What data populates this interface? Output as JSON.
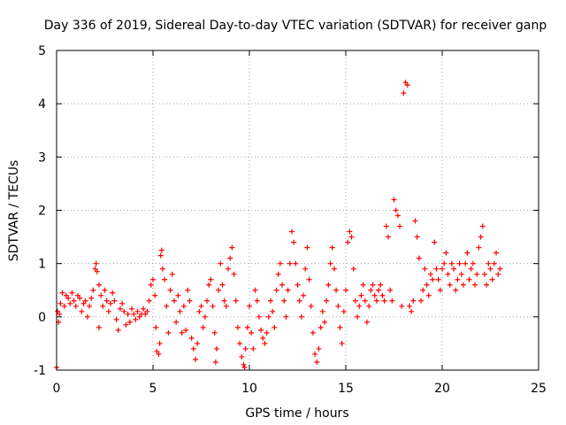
{
  "chart_data": {
    "type": "scatter",
    "title": "Day 336 of 2019, Sidereal Day-to-day VTEC variation (SDTVAR) for receiver ganp",
    "xlabel": "GPS time / hours",
    "ylabel": "SDTVAR / TECUs",
    "xlim": [
      0,
      25
    ],
    "ylim": [
      -1,
      5
    ],
    "x_ticks": [
      "0",
      "5",
      "10",
      "15",
      "20",
      "25"
    ],
    "y_ticks": [
      "-1",
      "0",
      "1",
      "2",
      "3",
      "4",
      "5"
    ],
    "grid": true,
    "marker": "+",
    "color": "#ff0000",
    "series": [
      {
        "name": "SDTVAR",
        "points": [
          [
            0.0,
            -0.95
          ],
          [
            0.05,
            0.1
          ],
          [
            0.1,
            -0.1
          ],
          [
            0.15,
            0.05
          ],
          [
            0.2,
            0.25
          ],
          [
            0.3,
            0.45
          ],
          [
            0.4,
            0.2
          ],
          [
            0.5,
            0.4
          ],
          [
            0.6,
            0.35
          ],
          [
            0.7,
            0.25
          ],
          [
            0.8,
            0.45
          ],
          [
            0.9,
            0.3
          ],
          [
            1.0,
            0.2
          ],
          [
            1.1,
            0.4
          ],
          [
            1.2,
            0.35
          ],
          [
            1.3,
            0.1
          ],
          [
            1.4,
            0.25
          ],
          [
            1.5,
            0.3
          ],
          [
            1.6,
            0.0
          ],
          [
            1.7,
            0.2
          ],
          [
            1.8,
            0.35
          ],
          [
            1.9,
            0.5
          ],
          [
            2.0,
            0.9
          ],
          [
            2.05,
            1.0
          ],
          [
            2.1,
            0.85
          ],
          [
            2.2,
            0.6
          ],
          [
            2.3,
            0.4
          ],
          [
            2.2,
            -0.2
          ],
          [
            2.4,
            0.2
          ],
          [
            2.5,
            0.5
          ],
          [
            2.6,
            0.3
          ],
          [
            2.7,
            0.1
          ],
          [
            2.8,
            0.25
          ],
          [
            2.9,
            0.45
          ],
          [
            3.0,
            0.3
          ],
          [
            3.1,
            -0.05
          ],
          [
            3.2,
            -0.25
          ],
          [
            3.3,
            0.15
          ],
          [
            3.4,
            0.25
          ],
          [
            3.5,
            0.1
          ],
          [
            3.6,
            -0.15
          ],
          [
            3.7,
            0.05
          ],
          [
            3.8,
            -0.1
          ],
          [
            3.9,
            0.15
          ],
          [
            4.0,
            0.05
          ],
          [
            4.1,
            -0.05
          ],
          [
            4.2,
            0.1
          ],
          [
            4.3,
            0.0
          ],
          [
            4.4,
            0.05
          ],
          [
            4.5,
            0.15
          ],
          [
            4.6,
            0.05
          ],
          [
            4.7,
            0.1
          ],
          [
            4.8,
            0.3
          ],
          [
            4.9,
            0.6
          ],
          [
            5.0,
            0.7
          ],
          [
            5.1,
            0.4
          ],
          [
            5.15,
            -0.2
          ],
          [
            5.2,
            -0.65
          ],
          [
            5.3,
            -0.7
          ],
          [
            5.35,
            -0.5
          ],
          [
            5.4,
            1.15
          ],
          [
            5.45,
            1.25
          ],
          [
            5.5,
            0.9
          ],
          [
            5.6,
            0.7
          ],
          [
            5.7,
            0.2
          ],
          [
            5.8,
            -0.3
          ],
          [
            5.9,
            0.5
          ],
          [
            6.0,
            0.8
          ],
          [
            6.1,
            0.3
          ],
          [
            6.2,
            -0.1
          ],
          [
            6.3,
            0.4
          ],
          [
            6.4,
            0.1
          ],
          [
            6.5,
            -0.3
          ],
          [
            6.6,
            0.2
          ],
          [
            6.7,
            -0.25
          ],
          [
            6.8,
            0.5
          ],
          [
            6.9,
            0.3
          ],
          [
            7.0,
            -0.4
          ],
          [
            7.1,
            -0.6
          ],
          [
            7.2,
            -0.8
          ],
          [
            7.3,
            -0.5
          ],
          [
            7.4,
            0.1
          ],
          [
            7.5,
            0.2
          ],
          [
            7.6,
            -0.2
          ],
          [
            7.7,
            0.0
          ],
          [
            7.8,
            0.3
          ],
          [
            7.9,
            0.6
          ],
          [
            8.0,
            0.7
          ],
          [
            8.1,
            0.2
          ],
          [
            8.2,
            -0.3
          ],
          [
            8.25,
            -0.85
          ],
          [
            8.3,
            -0.6
          ],
          [
            8.4,
            0.5
          ],
          [
            8.5,
            1.0
          ],
          [
            8.6,
            0.6
          ],
          [
            8.7,
            0.3
          ],
          [
            8.8,
            0.2
          ],
          [
            8.9,
            0.9
          ],
          [
            9.0,
            1.1
          ],
          [
            9.1,
            1.3
          ],
          [
            9.2,
            0.8
          ],
          [
            9.3,
            0.3
          ],
          [
            9.4,
            -0.2
          ],
          [
            9.5,
            -0.5
          ],
          [
            9.6,
            -0.75
          ],
          [
            9.7,
            -0.9
          ],
          [
            9.75,
            -0.95
          ],
          [
            9.8,
            -0.6
          ],
          [
            9.9,
            -0.2
          ],
          [
            10.0,
            0.2
          ],
          [
            10.1,
            -0.3
          ],
          [
            10.2,
            -0.6
          ],
          [
            10.3,
            0.5
          ],
          [
            10.4,
            0.3
          ],
          [
            10.5,
            0.0
          ],
          [
            10.6,
            -0.25
          ],
          [
            10.7,
            -0.4
          ],
          [
            10.8,
            -0.5
          ],
          [
            10.9,
            -0.3
          ],
          [
            11.0,
            0.0
          ],
          [
            11.1,
            0.3
          ],
          [
            11.2,
            0.1
          ],
          [
            11.3,
            -0.2
          ],
          [
            11.4,
            0.5
          ],
          [
            11.5,
            0.8
          ],
          [
            11.6,
            1.0
          ],
          [
            11.7,
            0.6
          ],
          [
            11.8,
            0.3
          ],
          [
            11.9,
            0.0
          ],
          [
            12.0,
            0.5
          ],
          [
            12.1,
            1.0
          ],
          [
            12.2,
            1.6
          ],
          [
            12.3,
            1.4
          ],
          [
            12.4,
            1.0
          ],
          [
            12.5,
            0.6
          ],
          [
            12.6,
            0.3
          ],
          [
            12.7,
            0.0
          ],
          [
            12.8,
            0.4
          ],
          [
            12.9,
            0.9
          ],
          [
            13.0,
            1.3
          ],
          [
            13.1,
            0.7
          ],
          [
            13.2,
            0.2
          ],
          [
            13.3,
            -0.3
          ],
          [
            13.4,
            -0.7
          ],
          [
            13.5,
            -0.85
          ],
          [
            13.6,
            -0.6
          ],
          [
            13.7,
            -0.2
          ],
          [
            13.8,
            0.1
          ],
          [
            13.9,
            -0.1
          ],
          [
            14.0,
            0.3
          ],
          [
            14.1,
            0.6
          ],
          [
            14.2,
            1.0
          ],
          [
            14.3,
            1.3
          ],
          [
            14.4,
            0.9
          ],
          [
            14.5,
            0.5
          ],
          [
            14.6,
            0.2
          ],
          [
            14.7,
            -0.2
          ],
          [
            14.8,
            -0.5
          ],
          [
            14.9,
            0.1
          ],
          [
            15.0,
            0.5
          ],
          [
            15.1,
            1.4
          ],
          [
            15.2,
            1.6
          ],
          [
            15.3,
            1.5
          ],
          [
            15.4,
            0.9
          ],
          [
            15.5,
            0.3
          ],
          [
            15.6,
            0.0
          ],
          [
            15.7,
            0.2
          ],
          [
            15.8,
            0.4
          ],
          [
            15.9,
            0.6
          ],
          [
            16.0,
            0.3
          ],
          [
            16.1,
            -0.1
          ],
          [
            16.2,
            0.2
          ],
          [
            16.3,
            0.5
          ],
          [
            16.4,
            0.6
          ],
          [
            16.5,
            0.4
          ],
          [
            16.6,
            0.3
          ],
          [
            16.7,
            0.5
          ],
          [
            16.8,
            0.6
          ],
          [
            16.9,
            0.4
          ],
          [
            17.0,
            0.3
          ],
          [
            17.1,
            1.7
          ],
          [
            17.2,
            1.5
          ],
          [
            17.3,
            0.5
          ],
          [
            17.4,
            0.3
          ],
          [
            17.5,
            2.2
          ],
          [
            17.6,
            2.0
          ],
          [
            17.7,
            1.9
          ],
          [
            17.8,
            1.7
          ],
          [
            17.9,
            0.2
          ],
          [
            18.0,
            4.2
          ],
          [
            18.1,
            4.4
          ],
          [
            18.2,
            4.35
          ],
          [
            18.3,
            0.2
          ],
          [
            18.4,
            0.1
          ],
          [
            18.5,
            0.3
          ],
          [
            18.6,
            1.8
          ],
          [
            18.7,
            1.5
          ],
          [
            18.8,
            1.1
          ],
          [
            18.9,
            0.3
          ],
          [
            19.0,
            0.5
          ],
          [
            19.1,
            0.9
          ],
          [
            19.2,
            0.6
          ],
          [
            19.3,
            0.4
          ],
          [
            19.4,
            0.8
          ],
          [
            19.5,
            0.7
          ],
          [
            19.6,
            1.4
          ],
          [
            19.7,
            0.9
          ],
          [
            19.8,
            0.7
          ],
          [
            19.9,
            0.5
          ],
          [
            20.0,
            0.9
          ],
          [
            20.1,
            1.0
          ],
          [
            20.2,
            1.2
          ],
          [
            20.3,
            0.8
          ],
          [
            20.4,
            0.6
          ],
          [
            20.5,
            1.0
          ],
          [
            20.6,
            0.9
          ],
          [
            20.7,
            0.5
          ],
          [
            20.8,
            0.7
          ],
          [
            20.9,
            1.0
          ],
          [
            21.0,
            0.8
          ],
          [
            21.1,
            0.6
          ],
          [
            21.2,
            1.0
          ],
          [
            21.3,
            1.2
          ],
          [
            21.4,
            0.7
          ],
          [
            21.5,
            0.9
          ],
          [
            21.6,
            1.0
          ],
          [
            21.7,
            0.6
          ],
          [
            21.8,
            0.8
          ],
          [
            21.9,
            1.3
          ],
          [
            22.0,
            1.5
          ],
          [
            22.1,
            1.7
          ],
          [
            22.2,
            0.8
          ],
          [
            22.3,
            0.6
          ],
          [
            22.4,
            1.0
          ],
          [
            22.5,
            0.9
          ],
          [
            22.6,
            0.7
          ],
          [
            22.7,
            1.0
          ],
          [
            22.8,
            1.2
          ],
          [
            22.9,
            0.8
          ],
          [
            23.0,
            0.9
          ]
        ]
      }
    ]
  }
}
